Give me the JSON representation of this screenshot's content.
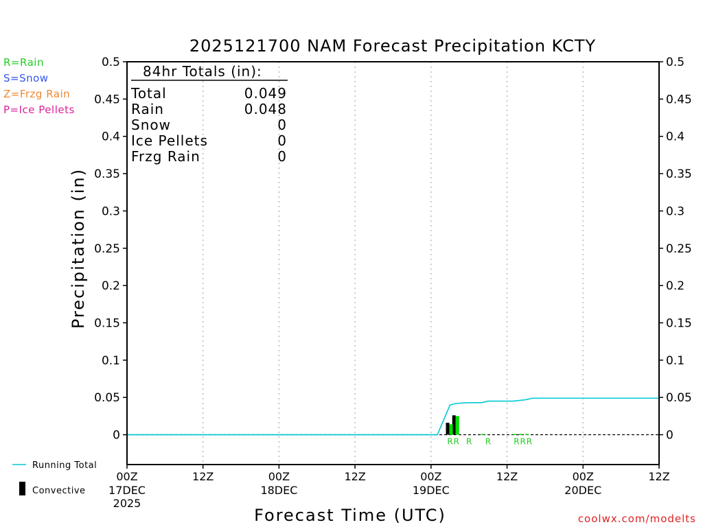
{
  "chart_data": {
    "type": "bar",
    "title": "2025121700 NAM Forecast Precipitation KCTY",
    "xlabel": "Forecast Time (UTC)",
    "ylabel": "Precipitation (in)",
    "ylim": [
      -0.04,
      0.5
    ],
    "xlim_hours": [
      0,
      84
    ],
    "y_ticks": [
      "0.5",
      "0.45",
      "0.4",
      "0.35",
      "0.3",
      "0.25",
      "0.2",
      "0.15",
      "0.1",
      "0.05",
      "0"
    ],
    "x_ticks": [
      {
        "hour": 0,
        "time": "00Z",
        "date": "17DEC",
        "year": "2025"
      },
      {
        "hour": 12,
        "time": "12Z",
        "date": "",
        "year": ""
      },
      {
        "hour": 24,
        "time": "00Z",
        "date": "18DEC",
        "year": ""
      },
      {
        "hour": 36,
        "time": "12Z",
        "date": "",
        "year": ""
      },
      {
        "hour": 48,
        "time": "00Z",
        "date": "19DEC",
        "year": ""
      },
      {
        "hour": 60,
        "time": "12Z",
        "date": "",
        "year": ""
      },
      {
        "hour": 72,
        "time": "00Z",
        "date": "20DEC",
        "year": ""
      },
      {
        "hour": 84,
        "time": "12Z",
        "date": "",
        "year": ""
      }
    ],
    "series": [
      {
        "name": "Running Total",
        "color": "#00c8d2",
        "points": [
          [
            0,
            0
          ],
          [
            49,
            0
          ],
          [
            51,
            0.04
          ],
          [
            52,
            0.042
          ],
          [
            54,
            0.043
          ],
          [
            56,
            0.043
          ],
          [
            57,
            0.045
          ],
          [
            59,
            0.045
          ],
          [
            61,
            0.045
          ],
          [
            63,
            0.047
          ],
          [
            64,
            0.049
          ],
          [
            66,
            0.049
          ],
          [
            84,
            0.049
          ]
        ]
      },
      {
        "name": "Convective",
        "color": "#000000",
        "bars": [
          [
            51,
            0.016
          ],
          [
            52,
            0.026
          ]
        ]
      },
      {
        "name": "Rain",
        "color": "#00dd00",
        "bars": [
          [
            51,
            0.014
          ],
          [
            52,
            0.025
          ],
          [
            56,
            0.001
          ],
          [
            61,
            0.001
          ],
          [
            62,
            0.001
          ],
          [
            63,
            0.001
          ]
        ]
      }
    ],
    "ptype_labels": [
      {
        "hour": 51,
        "label": "R"
      },
      {
        "hour": 52,
        "label": "R"
      },
      {
        "hour": 54,
        "label": "R"
      },
      {
        "hour": 57,
        "label": "R"
      },
      {
        "hour": 61.5,
        "label": "R"
      },
      {
        "hour": 62.5,
        "label": "R"
      },
      {
        "hour": 63.5,
        "label": "R"
      }
    ]
  },
  "totals": {
    "heading": "84hr Totals (in):",
    "rows": [
      {
        "label": "Total",
        "value": "0.049"
      },
      {
        "label": "Rain",
        "value": "0.048"
      },
      {
        "label": "Snow",
        "value": "0"
      },
      {
        "label": "Ice Pellets",
        "value": "0"
      },
      {
        "label": "Frzg Rain",
        "value": "0"
      }
    ]
  },
  "ptype_legend": [
    {
      "text": "R=Rain",
      "color": "#22cc22"
    },
    {
      "text": "S=Snow",
      "color": "#3355ee"
    },
    {
      "text": "Z=Frzg Rain",
      "color": "#ee8833"
    },
    {
      "text": "P=Ice Pellets",
      "color": "#dd2299"
    }
  ],
  "series_legend": {
    "running_total": "Running Total",
    "convective": "Convective"
  },
  "credit": "coolwx.com/modelts"
}
